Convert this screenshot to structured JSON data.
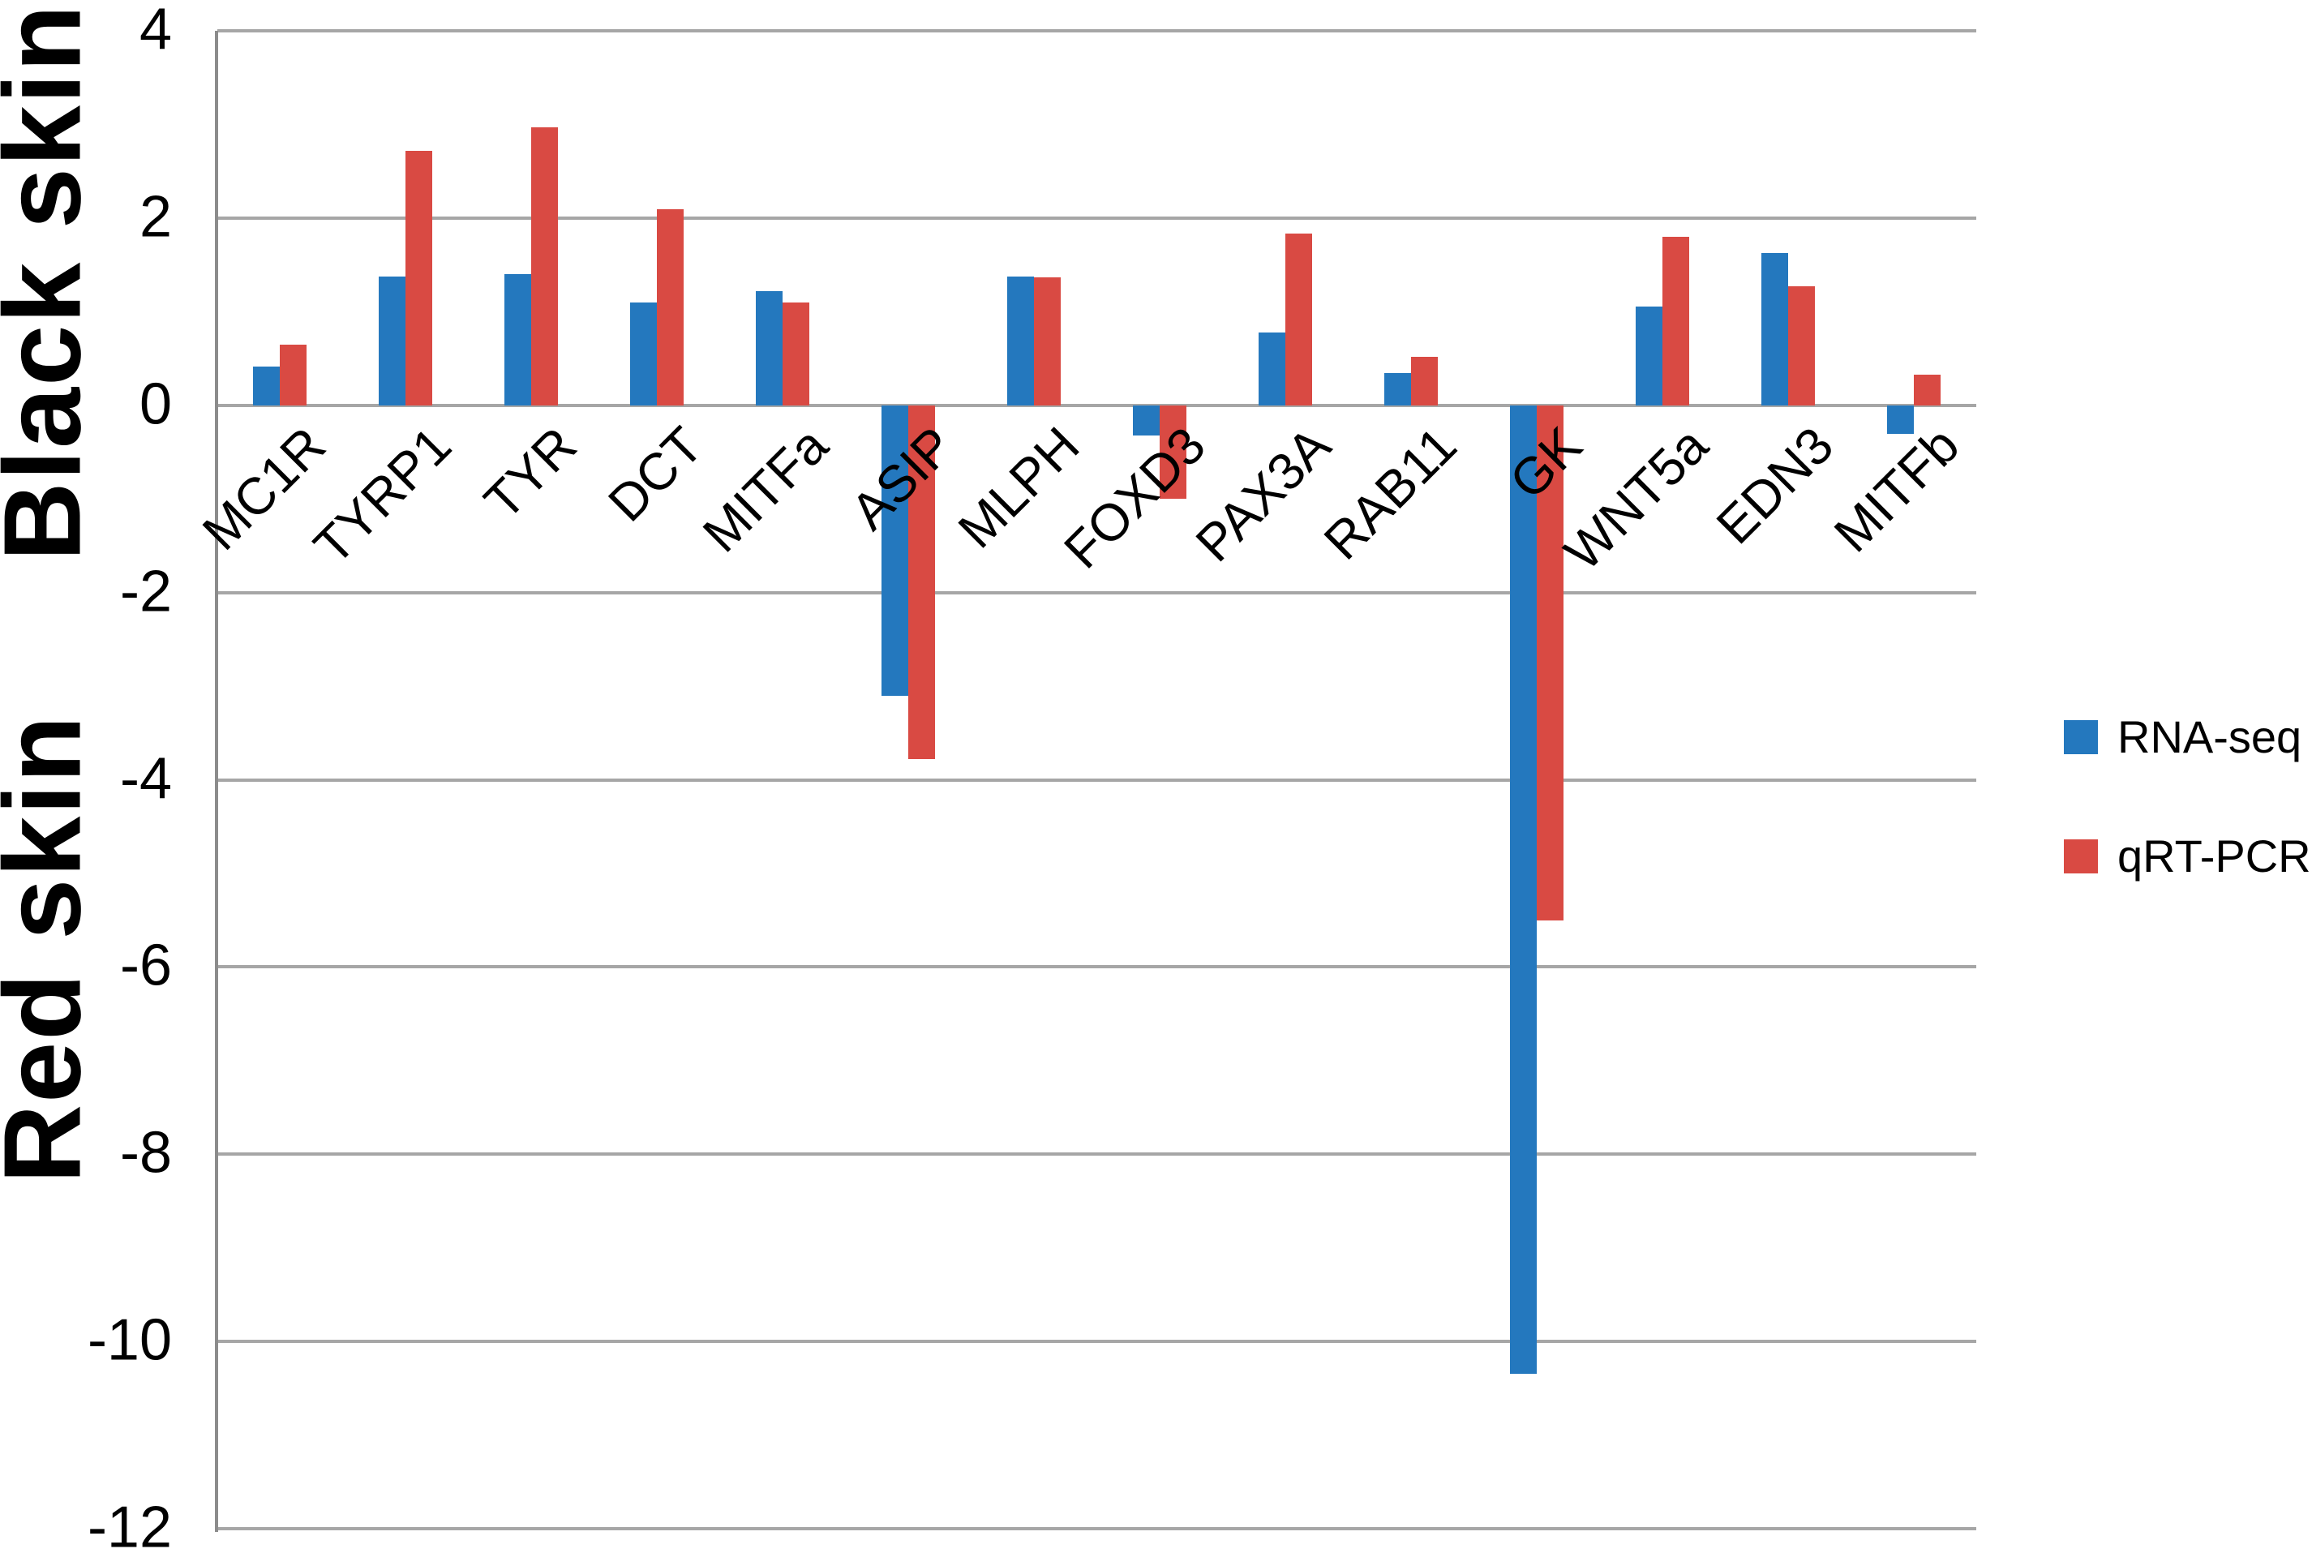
{
  "chart_data": {
    "type": "bar",
    "title": "",
    "xlabel": "",
    "ylabel": "",
    "categories": [
      "MC1R",
      "TYRP1",
      "TYR",
      "DCT",
      "MITFa",
      "ASIP",
      "MLPH",
      "FOXD3",
      "PAX3A",
      "RAB11",
      "GK",
      "WNT5a",
      "EDN3",
      "MITFb"
    ],
    "series": [
      {
        "name": "RNA-seq",
        "color": "#2478BE",
        "values": [
          0.42,
          1.38,
          1.4,
          1.1,
          1.22,
          -3.1,
          1.38,
          -0.32,
          0.78,
          0.35,
          -10.35,
          1.06,
          1.63,
          -0.3
        ]
      },
      {
        "name": "qRT-PCR",
        "color": "#D94A43",
        "values": [
          0.65,
          2.72,
          2.97,
          2.1,
          1.1,
          -3.78,
          1.37,
          -1.0,
          1.84,
          0.52,
          -5.5,
          1.8,
          1.27,
          0.33
        ]
      }
    ],
    "ylim": [
      -12,
      4
    ],
    "y_ticks": [
      4,
      2,
      0,
      -2,
      -4,
      -6,
      -8,
      -10,
      -12
    ],
    "grid": true,
    "legend_position": "right",
    "region_labels": {
      "top": "Black skin",
      "bottom": "Red skin"
    },
    "colors": {
      "gridline": "#A6A6A6",
      "axis_line": "#8C8C8C",
      "text": "#000000",
      "background": "#FFFFFF"
    }
  }
}
